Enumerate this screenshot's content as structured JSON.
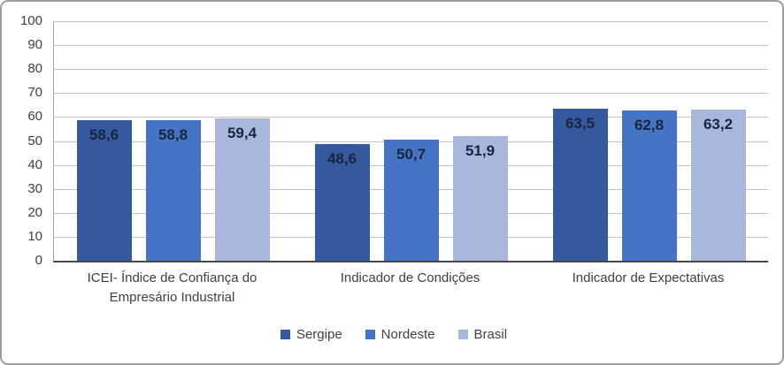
{
  "chart_data": {
    "type": "bar",
    "title": "",
    "xlabel": "",
    "ylabel": "",
    "categories": [
      "ICEI- Índice de Confiança do Empresário Industrial",
      "Indicador de Condições",
      "Indicador de Expectativas"
    ],
    "series": [
      {
        "name": "Sergipe",
        "color": "#35599E",
        "values": [
          58.6,
          48.6,
          63.5
        ],
        "labels": [
          "58,6",
          "48,6",
          "63,5"
        ]
      },
      {
        "name": "Nordeste",
        "color": "#4674C4",
        "values": [
          58.8,
          50.7,
          62.8
        ],
        "labels": [
          "58,8",
          "50,7",
          "62,8"
        ]
      },
      {
        "name": "Brasil",
        "color": "#AAB7DD",
        "values": [
          59.4,
          51.9,
          63.2
        ],
        "labels": [
          "59,4",
          "51,9",
          "63,2"
        ]
      }
    ],
    "ylim": [
      0,
      100
    ],
    "yticks": [
      0,
      10,
      20,
      30,
      40,
      50,
      60,
      70,
      80,
      90,
      100
    ],
    "grid": true,
    "legend_position": "bottom"
  },
  "style_colors": {
    "gridline": "#c3c3c3",
    "axis_line": "#474747",
    "plot_border": "#a6a6a6",
    "frame_border": "#9e9e9e",
    "tick_text": "#404040",
    "value_label_text": "#17263e"
  }
}
